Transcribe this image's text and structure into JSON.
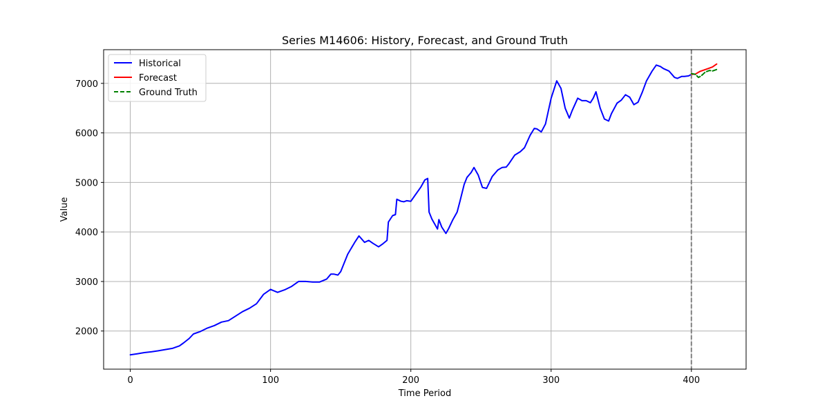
{
  "chart_data": {
    "type": "line",
    "title": "Series M14606: History, Forecast, and Ground Truth",
    "xlabel": "Time Period",
    "ylabel": "Value",
    "xlim": [
      -19,
      439
    ],
    "ylim": [
      1230,
      7680
    ],
    "xticks": [
      0,
      100,
      200,
      300,
      400
    ],
    "yticks": [
      2000,
      3000,
      4000,
      5000,
      6000,
      7000
    ],
    "grid": true,
    "legend_position": "top-left",
    "forecast_start_marker": 400,
    "series": [
      {
        "name": "Historical",
        "color": "#0000ff",
        "style": "solid",
        "x": [
          0,
          5,
          10,
          15,
          20,
          25,
          30,
          35,
          38,
          42,
          45,
          50,
          55,
          60,
          65,
          70,
          75,
          80,
          85,
          90,
          95,
          100,
          105,
          110,
          115,
          120,
          125,
          130,
          135,
          140,
          143,
          145,
          148,
          150,
          155,
          160,
          163,
          167,
          170,
          173,
          177,
          180,
          183,
          184,
          187,
          189,
          190,
          193,
          195,
          197,
          200,
          203,
          207,
          210,
          212,
          213,
          215,
          219,
          220,
          222,
          225,
          227,
          230,
          233,
          235,
          238,
          240,
          243,
          245,
          248,
          251,
          254,
          256,
          258,
          262,
          265,
          268,
          270,
          274,
          278,
          281,
          285,
          288,
          290,
          293,
          296,
          300,
          304,
          307,
          310,
          313,
          315,
          319,
          322,
          325,
          328,
          330,
          332,
          335,
          338,
          341,
          343,
          347,
          350,
          353,
          356,
          359,
          362,
          365,
          368,
          372,
          375,
          378,
          380,
          384,
          388,
          390,
          393,
          395,
          398,
          400
        ],
        "values": [
          1520,
          1540,
          1565,
          1580,
          1600,
          1625,
          1650,
          1700,
          1760,
          1850,
          1940,
          1990,
          2060,
          2110,
          2180,
          2210,
          2300,
          2390,
          2460,
          2550,
          2740,
          2840,
          2780,
          2830,
          2900,
          3000,
          3000,
          2990,
          2990,
          3050,
          3150,
          3150,
          3130,
          3200,
          3550,
          3790,
          3920,
          3790,
          3830,
          3770,
          3700,
          3760,
          3830,
          4200,
          4330,
          4350,
          4660,
          4620,
          4610,
          4630,
          4620,
          4740,
          4900,
          5050,
          5080,
          4400,
          4260,
          4060,
          4250,
          4100,
          3970,
          4070,
          4250,
          4400,
          4620,
          4960,
          5100,
          5200,
          5300,
          5150,
          4900,
          4880,
          5000,
          5120,
          5250,
          5300,
          5310,
          5380,
          5550,
          5620,
          5700,
          5950,
          6090,
          6080,
          6020,
          6180,
          6700,
          7050,
          6900,
          6500,
          6300,
          6450,
          6700,
          6650,
          6650,
          6610,
          6700,
          6830,
          6500,
          6280,
          6240,
          6390,
          6600,
          6660,
          6770,
          6720,
          6570,
          6620,
          6820,
          7050,
          7250,
          7370,
          7340,
          7300,
          7250,
          7120,
          7100,
          7140,
          7140,
          7150,
          7180
        ]
      },
      {
        "name": "Forecast",
        "color": "#ff0000",
        "style": "solid",
        "x": [
          400,
          403,
          406,
          409,
          412,
          415,
          418
        ],
        "values": [
          7180,
          7190,
          7240,
          7270,
          7300,
          7330,
          7390
        ]
      },
      {
        "name": "Ground Truth",
        "color": "#008000",
        "style": "dashed",
        "x": [
          400,
          403,
          405,
          407,
          410,
          413,
          415,
          418
        ],
        "values": [
          7200,
          7180,
          7120,
          7150,
          7230,
          7260,
          7250,
          7280
        ]
      }
    ]
  }
}
